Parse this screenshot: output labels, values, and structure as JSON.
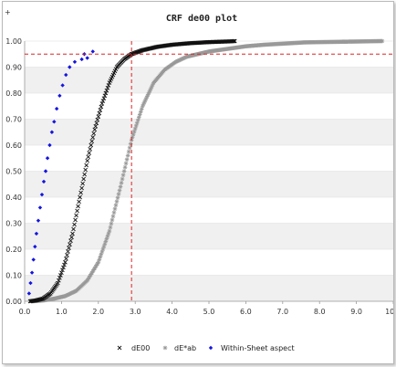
{
  "chart_data": {
    "type": "scatter",
    "title": "CRF de00 plot",
    "xlabel": "",
    "ylabel": "",
    "xlim": [
      0.0,
      10.0
    ],
    "ylim": [
      0.0,
      1.0
    ],
    "x_ticks": [
      "0.0",
      "1.0",
      "2.0",
      "3.0",
      "4.0",
      "5.0",
      "6.0",
      "7.0",
      "8.0",
      "9.0",
      "10.0"
    ],
    "y_ticks": [
      "0.00",
      "0.10",
      "0.20",
      "0.30",
      "0.40",
      "0.50",
      "0.60",
      "0.70",
      "0.80",
      "0.90",
      "1.00"
    ],
    "grid": "horizontal alternating bands",
    "legend_position": "bottom",
    "reference_lines": {
      "x": 2.9,
      "y": 0.95,
      "color": "#dd2222"
    },
    "series": [
      {
        "name": "dE00",
        "marker": "x",
        "color": "#111111",
        "points": [
          [
            0.15,
            0.0
          ],
          [
            0.3,
            0.003
          ],
          [
            0.5,
            0.01
          ],
          [
            0.7,
            0.03
          ],
          [
            0.9,
            0.07
          ],
          [
            1.1,
            0.15
          ],
          [
            1.3,
            0.26
          ],
          [
            1.5,
            0.4
          ],
          [
            1.7,
            0.54
          ],
          [
            1.9,
            0.66
          ],
          [
            2.1,
            0.76
          ],
          [
            2.3,
            0.84
          ],
          [
            2.5,
            0.9
          ],
          [
            2.7,
            0.93
          ],
          [
            2.9,
            0.95
          ],
          [
            3.2,
            0.965
          ],
          [
            3.6,
            0.978
          ],
          [
            4.0,
            0.986
          ],
          [
            4.5,
            0.992
          ],
          [
            5.0,
            0.996
          ],
          [
            5.6,
            0.999
          ],
          [
            5.7,
            1.0
          ]
        ]
      },
      {
        "name": "dE*ab",
        "marker": "asterisk",
        "color": "#999999",
        "points": [
          [
            0.2,
            0.0
          ],
          [
            0.5,
            0.003
          ],
          [
            0.8,
            0.01
          ],
          [
            1.1,
            0.02
          ],
          [
            1.4,
            0.04
          ],
          [
            1.7,
            0.08
          ],
          [
            2.0,
            0.15
          ],
          [
            2.3,
            0.27
          ],
          [
            2.6,
            0.44
          ],
          [
            2.9,
            0.62
          ],
          [
            3.2,
            0.75
          ],
          [
            3.5,
            0.84
          ],
          [
            3.8,
            0.89
          ],
          [
            4.1,
            0.92
          ],
          [
            4.4,
            0.94
          ],
          [
            4.7,
            0.95
          ],
          [
            5.0,
            0.96
          ],
          [
            5.5,
            0.97
          ],
          [
            6.0,
            0.98
          ],
          [
            6.5,
            0.986
          ],
          [
            7.0,
            0.99
          ],
          [
            7.6,
            0.995
          ],
          [
            9.7,
            1.0
          ]
        ]
      },
      {
        "name": "Within-Sheet aspect",
        "marker": "diamond",
        "color": "#1515e0",
        "points": [
          [
            0.12,
            0.03
          ],
          [
            0.16,
            0.07
          ],
          [
            0.2,
            0.11
          ],
          [
            0.24,
            0.16
          ],
          [
            0.28,
            0.21
          ],
          [
            0.32,
            0.26
          ],
          [
            0.37,
            0.31
          ],
          [
            0.42,
            0.36
          ],
          [
            0.47,
            0.41
          ],
          [
            0.52,
            0.46
          ],
          [
            0.57,
            0.5
          ],
          [
            0.62,
            0.55
          ],
          [
            0.68,
            0.6
          ],
          [
            0.74,
            0.65
          ],
          [
            0.8,
            0.69
          ],
          [
            0.87,
            0.74
          ],
          [
            0.95,
            0.79
          ],
          [
            1.03,
            0.83
          ],
          [
            1.12,
            0.87
          ],
          [
            1.22,
            0.9
          ],
          [
            1.36,
            0.92
          ],
          [
            1.55,
            0.93
          ],
          [
            1.62,
            0.95
          ],
          [
            1.7,
            0.935
          ],
          [
            1.85,
            0.96
          ]
        ]
      }
    ]
  },
  "page": {
    "corner_mark": "+"
  }
}
